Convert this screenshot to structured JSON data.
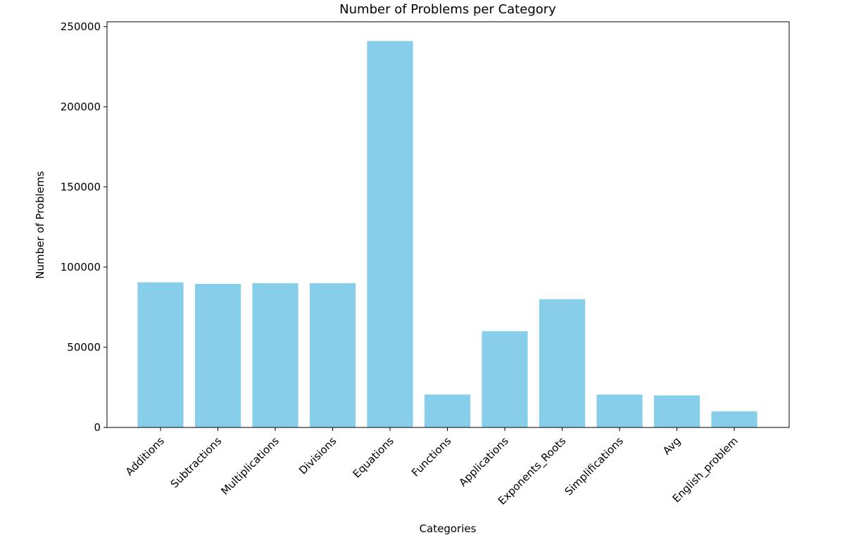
{
  "chart_data": {
    "type": "bar",
    "title": "Number of Problems per Category",
    "xlabel": "Categories",
    "ylabel": "Number of Problems",
    "categories": [
      "Additions",
      "Subtractions",
      "Multiplications",
      "Divisions",
      "Equations",
      "Functions",
      "Applications",
      "Exponents_Roots",
      "Simplifications",
      "Avg",
      "English_problem"
    ],
    "values": [
      90500,
      89500,
      90000,
      90000,
      241000,
      20500,
      60000,
      80000,
      20500,
      20000,
      10000
    ],
    "ylim": [
      0,
      253000
    ],
    "yticks": [
      0,
      50000,
      100000,
      150000,
      200000,
      250000
    ],
    "ytick_labels": [
      "0",
      "50000",
      "100000",
      "150000",
      "200000",
      "250000"
    ],
    "bar_color": "#87ceeb",
    "grid": false,
    "xtick_rotation_deg": 45
  }
}
